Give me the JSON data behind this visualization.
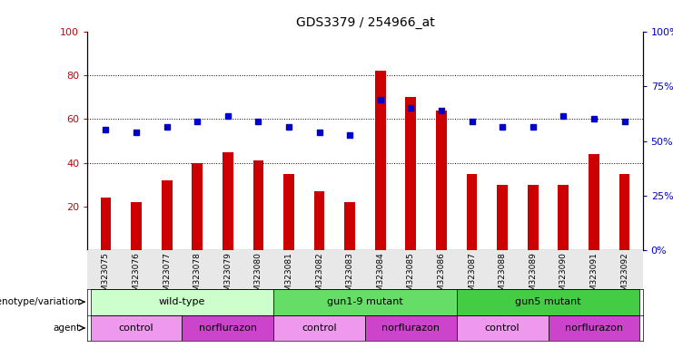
{
  "title": "GDS3379 / 254966_at",
  "samples": [
    "GSM323075",
    "GSM323076",
    "GSM323077",
    "GSM323078",
    "GSM323079",
    "GSM323080",
    "GSM323081",
    "GSM323082",
    "GSM323083",
    "GSM323084",
    "GSM323085",
    "GSM323086",
    "GSM323087",
    "GSM323088",
    "GSM323089",
    "GSM323090",
    "GSM323091",
    "GSM323092"
  ],
  "bar_values": [
    24,
    22,
    32,
    40,
    45,
    41,
    35,
    27,
    22,
    82,
    70,
    64,
    35,
    30,
    30,
    30,
    44,
    35
  ],
  "dot_values": [
    64,
    63,
    65,
    67,
    69,
    67,
    65,
    63,
    62,
    75,
    72,
    71,
    67,
    65,
    65,
    69,
    68,
    67
  ],
  "bar_color": "#cc0000",
  "dot_color": "#0000cc",
  "ylim_left": [
    0,
    100
  ],
  "yticks_left": [
    20,
    40,
    60,
    80,
    100
  ],
  "yticks_right": [
    0,
    25,
    50,
    75,
    100
  ],
  "ytick_labels_right": [
    "0%",
    "25%",
    "50%",
    "75%",
    "100%"
  ],
  "genotype_groups": [
    {
      "label": "wild-type",
      "start": 0,
      "end": 5,
      "color": "#ccffcc"
    },
    {
      "label": "gun1-9 mutant",
      "start": 6,
      "end": 11,
      "color": "#66dd66"
    },
    {
      "label": "gun5 mutant",
      "start": 12,
      "end": 17,
      "color": "#44cc44"
    }
  ],
  "agent_groups": [
    {
      "label": "control",
      "start": 0,
      "end": 2,
      "color": "#ee99ee"
    },
    {
      "label": "norflurazon",
      "start": 3,
      "end": 5,
      "color": "#cc44cc"
    },
    {
      "label": "control",
      "start": 6,
      "end": 8,
      "color": "#ee99ee"
    },
    {
      "label": "norflurazon",
      "start": 9,
      "end": 11,
      "color": "#cc44cc"
    },
    {
      "label": "control",
      "start": 12,
      "end": 14,
      "color": "#ee99ee"
    },
    {
      "label": "norflurazon",
      "start": 15,
      "end": 17,
      "color": "#cc44cc"
    }
  ]
}
